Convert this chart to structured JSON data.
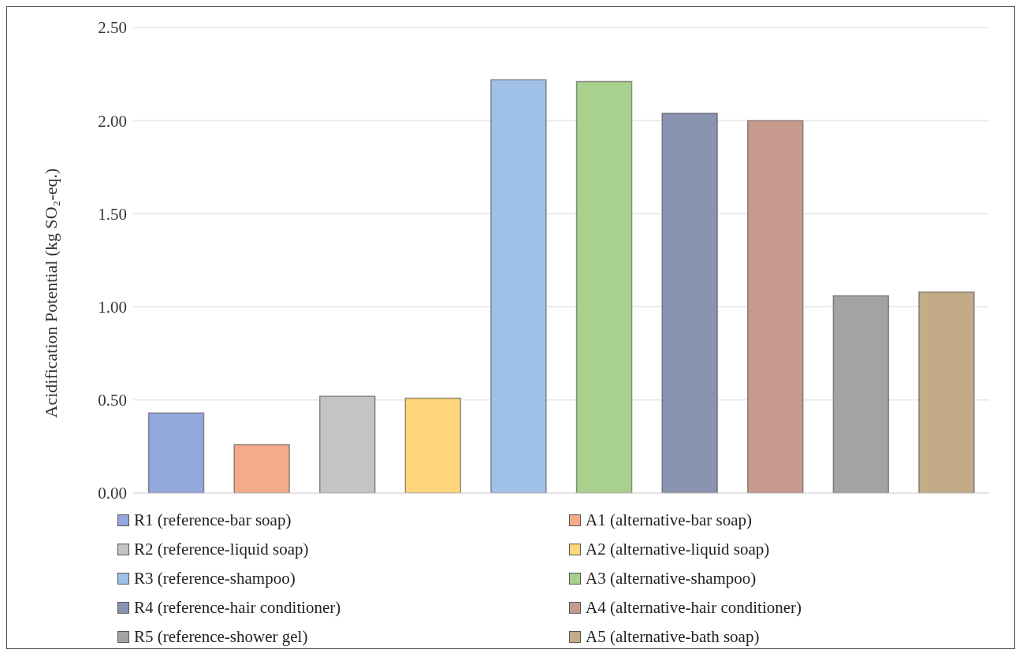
{
  "chart_data": {
    "type": "bar",
    "ylabel": "Acidification Potential (kg SO₂-eq.)",
    "categories": [
      null,
      null,
      null,
      null,
      null,
      null,
      null,
      null,
      null,
      null
    ],
    "series": [
      {
        "name": "R1 (reference-bar soap)",
        "color": "#93a8dc",
        "values": [
          0.43,
          null,
          null,
          null,
          null,
          null,
          null,
          null,
          null,
          null
        ]
      },
      {
        "name": "A1 (alternative-bar soap)",
        "color": "#f4ab8a",
        "values": [
          null,
          0.26,
          null,
          null,
          null,
          null,
          null,
          null,
          null,
          null
        ]
      },
      {
        "name": "R2 (reference-liquid soap)",
        "color": "#c4c4c4",
        "values": [
          null,
          null,
          0.52,
          null,
          null,
          null,
          null,
          null,
          null,
          null
        ]
      },
      {
        "name": "A2 (alternative-liquid soap)",
        "color": "#ffd77a",
        "values": [
          null,
          null,
          null,
          0.51,
          null,
          null,
          null,
          null,
          null,
          null
        ]
      },
      {
        "name": "R3 (reference-shampoo)",
        "color": "#a0c1e7",
        "values": [
          null,
          null,
          null,
          null,
          2.22,
          null,
          null,
          null,
          null,
          null
        ]
      },
      {
        "name": "A3 (alternative-shampoo)",
        "color": "#a9d18e",
        "values": [
          null,
          null,
          null,
          null,
          null,
          2.21,
          null,
          null,
          null,
          null
        ]
      },
      {
        "name": "R4 (reference-hair conditioner)",
        "color": "#8a93b0",
        "values": [
          null,
          null,
          null,
          null,
          null,
          null,
          2.04,
          null,
          null,
          null
        ]
      },
      {
        "name": "A4 (alternative-hair conditioner)",
        "color": "#c69a8c",
        "values": [
          null,
          null,
          null,
          null,
          null,
          null,
          null,
          2.0,
          null,
          null
        ]
      },
      {
        "name": "R5 (reference-shower gel)",
        "color": "#a3a3a3",
        "values": [
          null,
          null,
          null,
          null,
          null,
          null,
          null,
          null,
          1.06,
          null
        ]
      },
      {
        "name": "A5 (alternative-bath soap)",
        "color": "#c4ab88",
        "values": [
          null,
          null,
          null,
          null,
          null,
          null,
          null,
          null,
          null,
          1.08
        ]
      }
    ],
    "ylim": [
      0,
      2.5
    ],
    "yticks": [
      {
        "value": 0,
        "label": "0.00"
      },
      {
        "value": 0.5,
        "label": "0.50"
      },
      {
        "value": 1,
        "label": "1.00"
      },
      {
        "value": 1.5,
        "label": "1.50"
      },
      {
        "value": 2,
        "label": "2.00"
      },
      {
        "value": 2.5,
        "label": "2.50"
      }
    ],
    "grid": "y",
    "legend": "bottom"
  }
}
